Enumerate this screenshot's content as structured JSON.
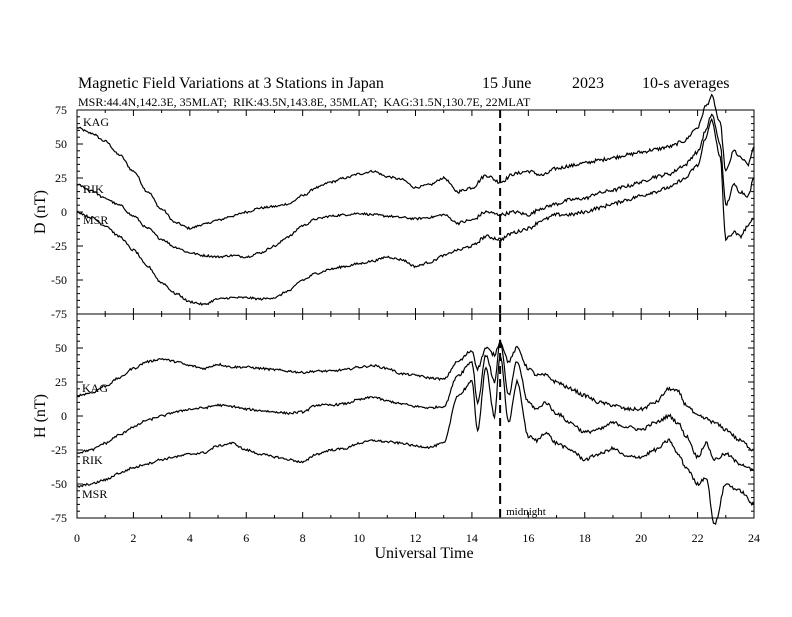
{
  "chart_data": {
    "type": "line",
    "title": {
      "main": "Magnetic Field Variations at 3 Stations in Japan",
      "date": "15 June",
      "year": "2023",
      "averaging": "10-s averages"
    },
    "subtitle": "MSR:44.4N,142.3E, 35MLAT;  RIK:43.5N,143.8E, 35MLAT;  KAG:31.5N,130.7E, 22MLAT",
    "xlabel": "Universal Time",
    "xlim": [
      0,
      24
    ],
    "xticks": [
      "0",
      "2",
      "4",
      "6",
      "8",
      "10",
      "12",
      "14",
      "16",
      "18",
      "20",
      "22",
      "24"
    ],
    "annotation": {
      "x": 15,
      "label": "midnight"
    },
    "panels": [
      {
        "ylabel": "D (nT)",
        "ylim": [
          -75,
          75
        ],
        "yticks": [
          "75",
          "50",
          "25",
          "0",
          "-25",
          "-50",
          "-75"
        ],
        "series": [
          {
            "name": "KAG",
            "x": [
              0,
              0.5,
              1,
              1.5,
              2,
              2.5,
              3,
              3.5,
              4,
              4.5,
              5,
              5.5,
              6,
              6.5,
              7,
              7.5,
              8,
              8.5,
              9,
              9.5,
              10,
              10.5,
              11,
              11.5,
              12,
              12.5,
              13,
              13.5,
              14,
              14.5,
              15,
              15.5,
              16,
              16.5,
              17,
              17.5,
              18,
              18.5,
              19,
              19.5,
              20,
              20.5,
              21,
              21.5,
              22,
              22.3,
              22.5,
              22.8,
              23,
              23.3,
              23.5,
              23.8,
              24
            ],
            "y": [
              62,
              58,
              52,
              42,
              30,
              15,
              2,
              -8,
              -12,
              -9,
              -6,
              -3,
              0,
              3,
              4,
              6,
              12,
              18,
              22,
              25,
              28,
              30,
              26,
              24,
              18,
              20,
              25,
              15,
              18,
              27,
              22,
              28,
              30,
              27,
              32,
              34,
              36,
              38,
              40,
              42,
              44,
              46,
              48,
              52,
              62,
              78,
              85,
              65,
              30,
              45,
              40,
              35,
              48
            ]
          },
          {
            "name": "RIK",
            "x": [
              0,
              0.5,
              1,
              1.5,
              2,
              2.5,
              3,
              3.5,
              4,
              4.5,
              5,
              5.5,
              6,
              6.5,
              7,
              7.5,
              8,
              8.5,
              9,
              9.5,
              10,
              10.5,
              11,
              11.5,
              12,
              12.5,
              13,
              13.5,
              14,
              14.5,
              15,
              15.5,
              16,
              16.5,
              17,
              17.5,
              18,
              18.5,
              19,
              19.5,
              20,
              20.5,
              21,
              21.5,
              22,
              22.3,
              22.5,
              22.8,
              23,
              23.3,
              23.5,
              23.8,
              24
            ],
            "y": [
              20,
              16,
              10,
              5,
              -3,
              -12,
              -20,
              -26,
              -30,
              -32,
              -33,
              -32,
              -33,
              -30,
              -25,
              -18,
              -10,
              -5,
              -3,
              -2,
              -1,
              -2,
              -3,
              -4,
              -5,
              -4,
              -2,
              -8,
              -6,
              0,
              -2,
              0,
              -2,
              3,
              6,
              9,
              10,
              14,
              16,
              19,
              22,
              26,
              28,
              34,
              44,
              60,
              72,
              50,
              5,
              20,
              15,
              12,
              25
            ]
          },
          {
            "name": "MSR",
            "x": [
              0,
              0.5,
              1,
              1.5,
              2,
              2.5,
              3,
              3.5,
              4,
              4.5,
              5,
              5.5,
              6,
              6.5,
              7,
              7.5,
              8,
              8.5,
              9,
              9.5,
              10,
              10.5,
              11,
              11.5,
              12,
              12.5,
              13,
              13.5,
              14,
              14.5,
              15,
              15.5,
              16,
              16.5,
              17,
              17.5,
              18,
              18.5,
              19,
              19.5,
              20,
              20.5,
              21,
              21.5,
              22,
              22.3,
              22.5,
              22.8,
              23,
              23.3,
              23.5,
              23.8,
              24
            ],
            "y": [
              0,
              -4,
              -10,
              -18,
              -28,
              -40,
              -52,
              -60,
              -66,
              -68,
              -64,
              -63,
              -63,
              -64,
              -63,
              -58,
              -50,
              -45,
              -42,
              -40,
              -38,
              -36,
              -33,
              -35,
              -40,
              -37,
              -32,
              -28,
              -25,
              -18,
              -20,
              -15,
              -12,
              -6,
              -2,
              -2,
              0,
              3,
              6,
              9,
              12,
              15,
              18,
              24,
              34,
              55,
              68,
              40,
              -20,
              -15,
              -18,
              -10,
              -5
            ]
          }
        ]
      },
      {
        "ylabel": "H (nT)",
        "ylim": [
          -75,
          75
        ],
        "yticks": [
          "75",
          "50",
          "25",
          "0",
          "-25",
          "-50",
          "-75"
        ],
        "series": [
          {
            "name": "KAG",
            "x": [
              0,
              0.5,
              1,
              1.5,
              2,
              2.5,
              3,
              3.5,
              4,
              4.5,
              5,
              5.5,
              6,
              6.5,
              7,
              7.5,
              8,
              8.5,
              9,
              9.5,
              10,
              10.5,
              11,
              11.5,
              12,
              12.5,
              13,
              13.5,
              14,
              14.2,
              14.5,
              14.8,
              15,
              15.3,
              15.6,
              16,
              16.3,
              16.6,
              17,
              17.5,
              18,
              18.5,
              19,
              19.5,
              20,
              20.5,
              21,
              21.3,
              21.6,
              22,
              22.3,
              22.6,
              23,
              23.5,
              24
            ],
            "y": [
              15,
              17,
              22,
              28,
              35,
              40,
              42,
              40,
              37,
              35,
              38,
              36,
              36,
              35,
              34,
              33,
              32,
              33,
              33,
              34,
              36,
              37,
              35,
              31,
              30,
              28,
              27,
              40,
              48,
              35,
              50,
              45,
              55,
              40,
              50,
              35,
              30,
              30,
              25,
              20,
              15,
              10,
              8,
              5,
              5,
              10,
              20,
              18,
              8,
              0,
              -2,
              -5,
              -10,
              -18,
              -25
            ]
          },
          {
            "name": "RIK",
            "x": [
              0,
              0.5,
              1,
              1.5,
              2,
              2.5,
              3,
              3.5,
              4,
              4.5,
              5,
              5.5,
              6,
              6.5,
              7,
              7.5,
              8,
              8.5,
              9,
              9.5,
              10,
              10.5,
              11,
              11.5,
              12,
              12.5,
              13,
              13.5,
              14,
              14.2,
              14.5,
              14.8,
              15,
              15.3,
              15.6,
              16,
              16.3,
              16.6,
              17,
              17.5,
              18,
              18.5,
              19,
              19.5,
              20,
              20.5,
              21,
              21.3,
              21.6,
              22,
              22.3,
              22.6,
              23,
              23.5,
              24
            ],
            "y": [
              -27,
              -25,
              -20,
              -14,
              -8,
              -3,
              0,
              3,
              5,
              6,
              8,
              7,
              5,
              4,
              3,
              2,
              3,
              8,
              8,
              9,
              12,
              14,
              11,
              9,
              7,
              6,
              7,
              30,
              40,
              10,
              45,
              25,
              55,
              15,
              40,
              10,
              5,
              10,
              2,
              -5,
              -12,
              -10,
              -5,
              -8,
              -10,
              -5,
              0,
              -5,
              -15,
              -30,
              -20,
              -32,
              -28,
              -35,
              -40
            ]
          },
          {
            "name": "MSR",
            "x": [
              0,
              0.5,
              1,
              1.5,
              2,
              2.5,
              3,
              3.5,
              4,
              4.5,
              5,
              5.5,
              6,
              6.5,
              7,
              7.5,
              8,
              8.5,
              9,
              9.5,
              10,
              10.5,
              11,
              11.5,
              12,
              12.5,
              13,
              13.5,
              14,
              14.2,
              14.5,
              14.8,
              15,
              15.3,
              15.6,
              16,
              16.3,
              16.6,
              17,
              17.5,
              18,
              18.5,
              19,
              19.5,
              20,
              20.5,
              21,
              21.3,
              21.6,
              22,
              22.3,
              22.6,
              23,
              23.5,
              24
            ],
            "y": [
              -52,
              -50,
              -47,
              -42,
              -38,
              -35,
              -32,
              -30,
              -28,
              -27,
              -22,
              -20,
              -25,
              -28,
              -30,
              -32,
              -34,
              -28,
              -25,
              -24,
              -20,
              -18,
              -19,
              -20,
              -22,
              -23,
              -20,
              15,
              25,
              -10,
              35,
              0,
              45,
              -5,
              25,
              -15,
              -18,
              -12,
              -20,
              -25,
              -32,
              -28,
              -24,
              -30,
              -30,
              -25,
              -18,
              -28,
              -38,
              -50,
              -45,
              -80,
              -50,
              -55,
              -65
            ]
          }
        ]
      }
    ]
  }
}
